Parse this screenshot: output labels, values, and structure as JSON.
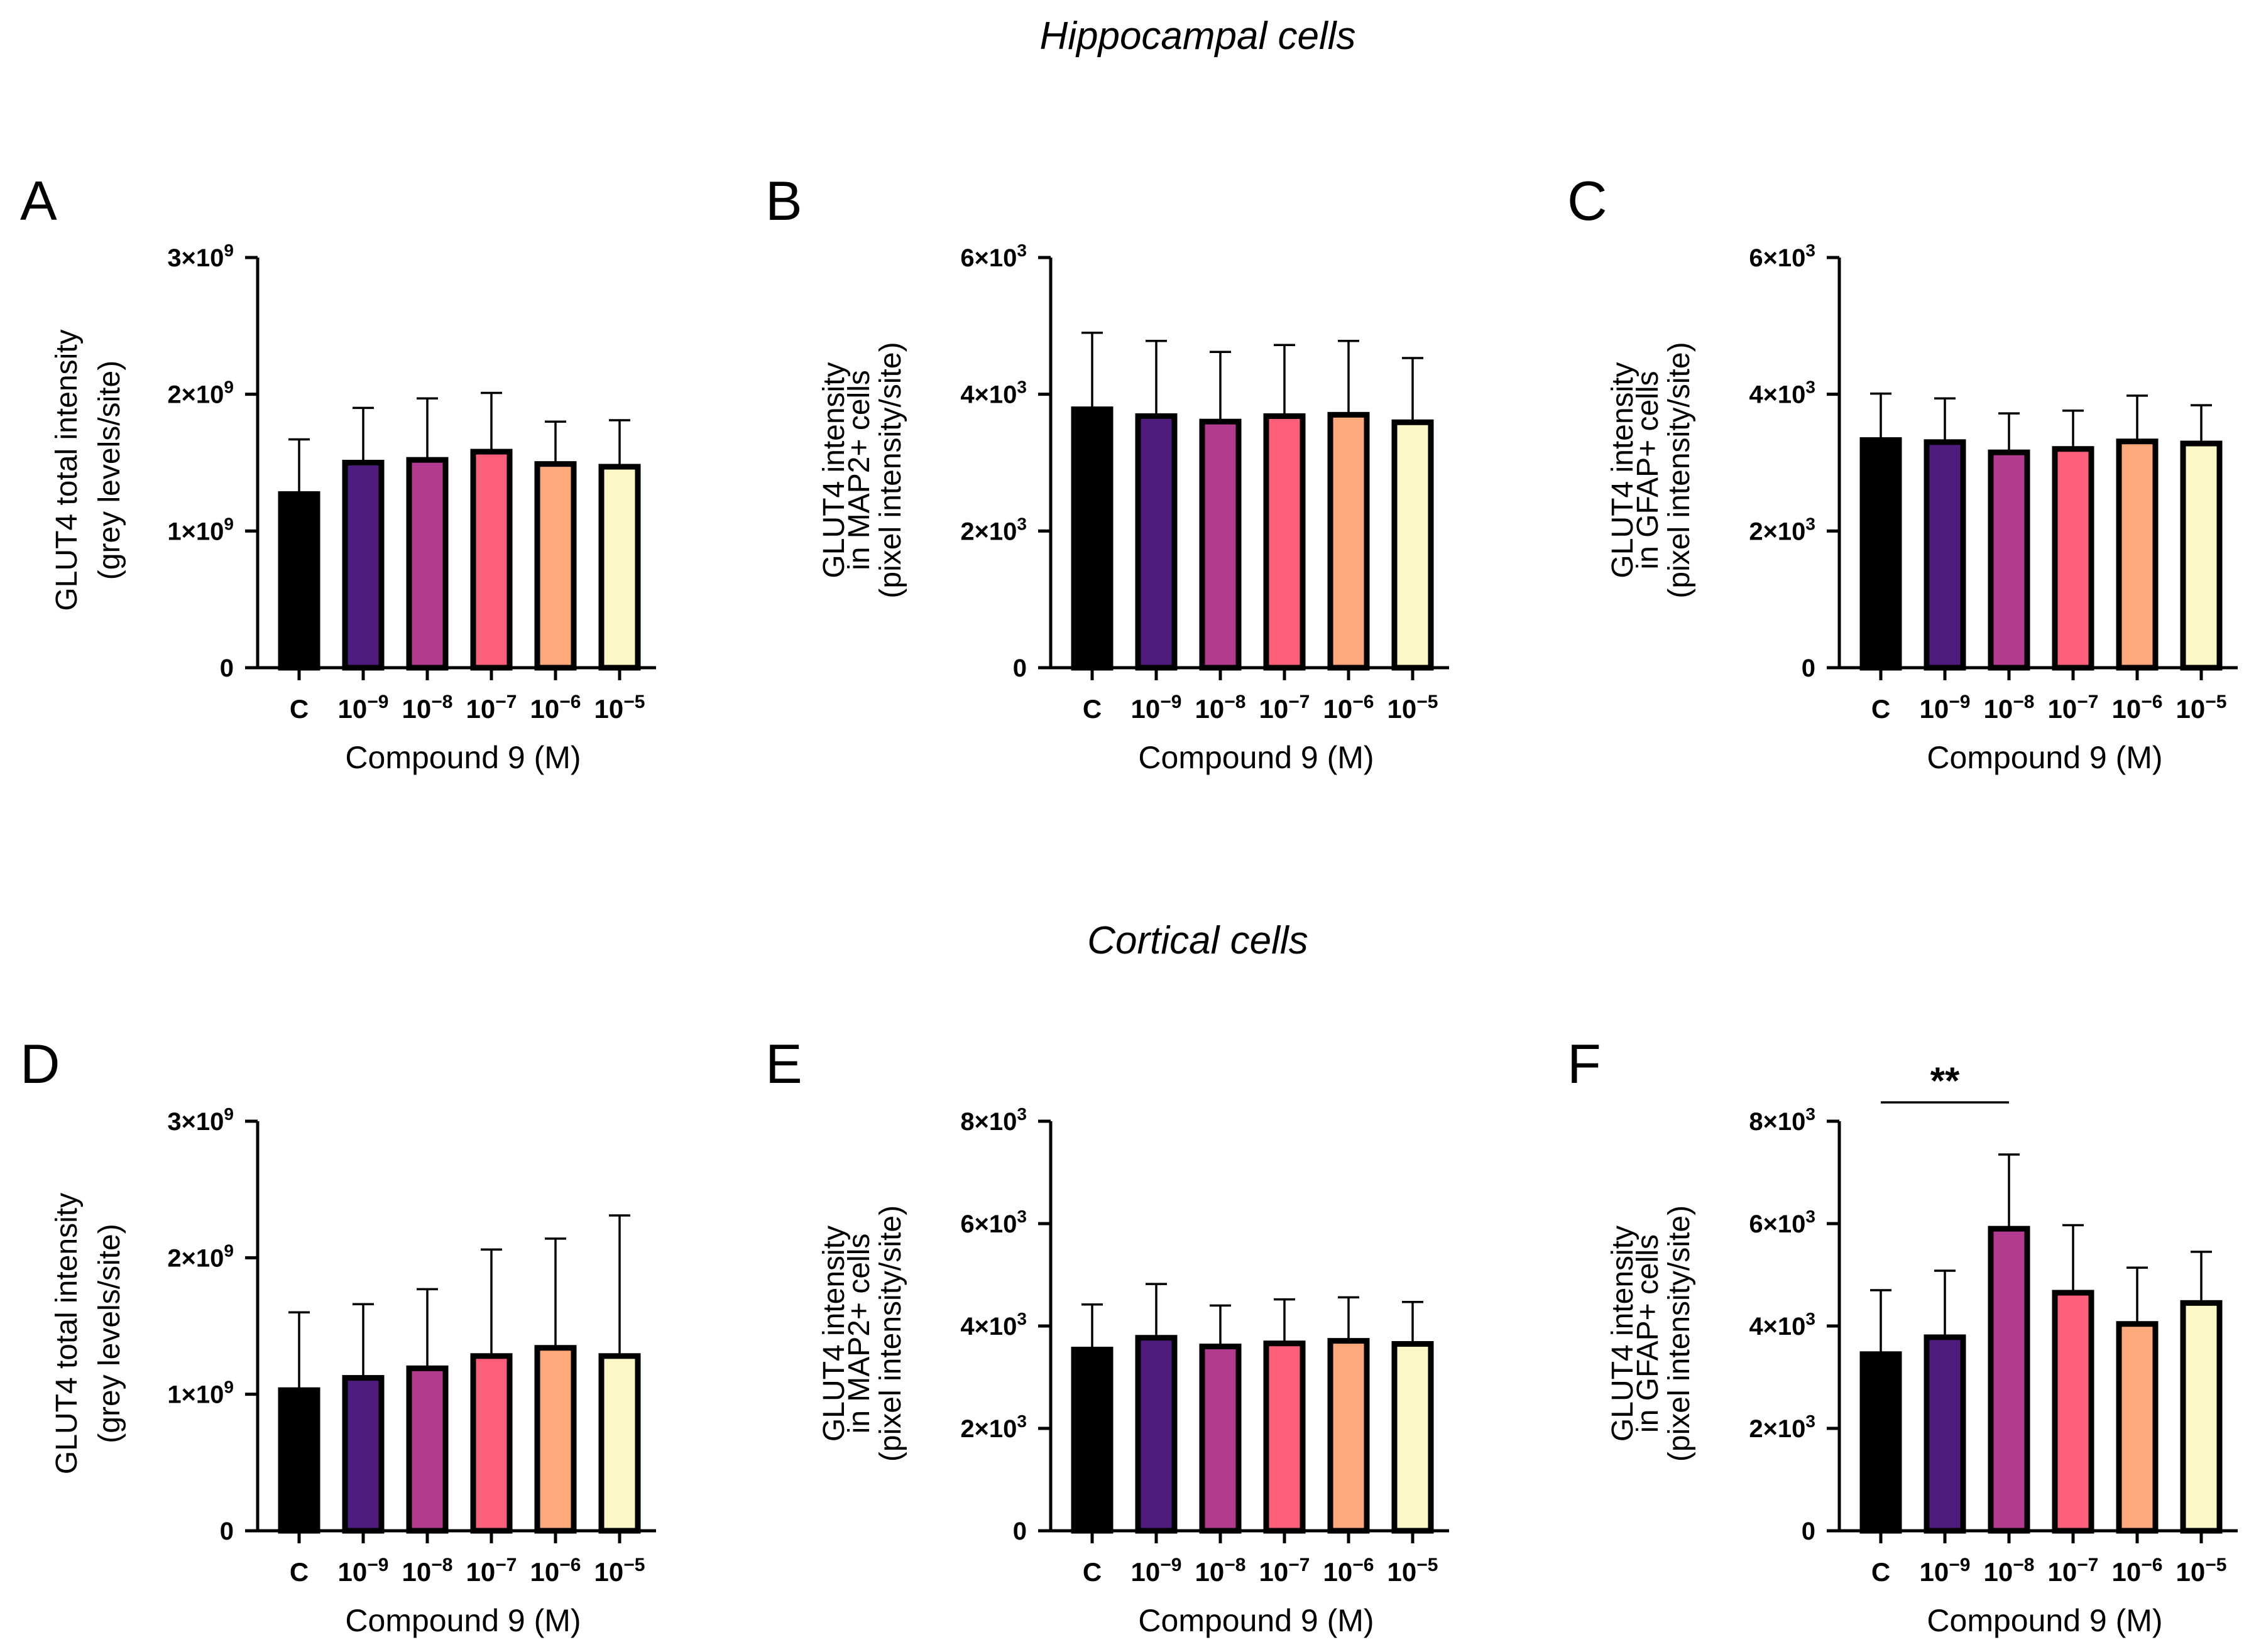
{
  "sections": [
    {
      "title": "Hippocampal cells"
    },
    {
      "title": "Cortical cells"
    }
  ],
  "bar_colors": [
    "#000000",
    "#4f1c7d",
    "#b23a8f",
    "#fc5f79",
    "#fea97b",
    "#fbf7c6"
  ],
  "chart_data": [
    {
      "panel": "A",
      "section": "Hippocampal cells",
      "type": "bar",
      "categories": [
        "C",
        "10^-9",
        "10^-8",
        "10^-7",
        "10^-6",
        "10^-5"
      ],
      "category_labels": [
        {
          "base": "C",
          "exp": ""
        },
        {
          "base": "10",
          "exp": "−9"
        },
        {
          "base": "10",
          "exp": "−8"
        },
        {
          "base": "10",
          "exp": "−7"
        },
        {
          "base": "10",
          "exp": "−6"
        },
        {
          "base": "10",
          "exp": "−5"
        }
      ],
      "values": [
        1270000000.0,
        1500000000.0,
        1520000000.0,
        1580000000.0,
        1490000000.0,
        1470000000.0
      ],
      "errors": [
        400000000.0,
        400000000.0,
        450000000.0,
        430000000.0,
        310000000.0,
        340000000.0
      ],
      "ylim": [
        0,
        3000000000.0
      ],
      "yticks": [
        {
          "value": 0,
          "base": "0",
          "exp": ""
        },
        {
          "value": 1000000000.0,
          "base": "1×10",
          "exp": "9"
        },
        {
          "value": 2000000000.0,
          "base": "2×10",
          "exp": "9"
        },
        {
          "value": 3000000000.0,
          "base": "3×10",
          "exp": "9"
        }
      ],
      "xlabel": "Compound 9 (M)",
      "ylabel": [
        "GLUT4 total intensity",
        "(grey levels/site)"
      ],
      "significance": null
    },
    {
      "panel": "B",
      "section": "Hippocampal cells",
      "type": "bar",
      "categories": [
        "C",
        "10^-9",
        "10^-8",
        "10^-7",
        "10^-6",
        "10^-5"
      ],
      "category_labels": [
        {
          "base": "C",
          "exp": ""
        },
        {
          "base": "10",
          "exp": "−9"
        },
        {
          "base": "10",
          "exp": "−8"
        },
        {
          "base": "10",
          "exp": "−7"
        },
        {
          "base": "10",
          "exp": "−6"
        },
        {
          "base": "10",
          "exp": "−5"
        }
      ],
      "values": [
        3780,
        3680,
        3600,
        3680,
        3700,
        3590
      ],
      "errors": [
        1120,
        1100,
        1020,
        1040,
        1080,
        940
      ],
      "ylim": [
        0,
        6000
      ],
      "yticks": [
        {
          "value": 0,
          "base": "0",
          "exp": ""
        },
        {
          "value": 2000,
          "base": "2×10",
          "exp": "3"
        },
        {
          "value": 4000,
          "base": "4×10",
          "exp": "3"
        },
        {
          "value": 6000,
          "base": "6×10",
          "exp": "3"
        }
      ],
      "xlabel": "Compound 9 (M)",
      "ylabel": [
        "GLUT4 intensity",
        "in MAP2+ cells",
        "(pixel intensity/site)"
      ],
      "significance": null
    },
    {
      "panel": "C",
      "section": "Hippocampal cells",
      "type": "bar",
      "categories": [
        "C",
        "10^-9",
        "10^-8",
        "10^-7",
        "10^-6",
        "10^-5"
      ],
      "category_labels": [
        {
          "base": "C",
          "exp": ""
        },
        {
          "base": "10",
          "exp": "−9"
        },
        {
          "base": "10",
          "exp": "−8"
        },
        {
          "base": "10",
          "exp": "−7"
        },
        {
          "base": "10",
          "exp": "−6"
        },
        {
          "base": "10",
          "exp": "−5"
        }
      ],
      "values": [
        3330,
        3300,
        3150,
        3200,
        3310,
        3280
      ],
      "errors": [
        680,
        640,
        570,
        560,
        670,
        560
      ],
      "ylim": [
        0,
        6000
      ],
      "yticks": [
        {
          "value": 0,
          "base": "0",
          "exp": ""
        },
        {
          "value": 2000,
          "base": "2×10",
          "exp": "3"
        },
        {
          "value": 4000,
          "base": "4×10",
          "exp": "3"
        },
        {
          "value": 6000,
          "base": "6×10",
          "exp": "3"
        }
      ],
      "xlabel": "Compound 9 (M)",
      "ylabel": [
        "GLUT4 intensity",
        "in GFAP+ cells",
        "(pixel intensity/site)"
      ],
      "significance": null
    },
    {
      "panel": "D",
      "section": "Cortical cells",
      "type": "bar",
      "categories": [
        "C",
        "10^-9",
        "10^-8",
        "10^-7",
        "10^-6",
        "10^-5"
      ],
      "category_labels": [
        {
          "base": "C",
          "exp": ""
        },
        {
          "base": "10",
          "exp": "−9"
        },
        {
          "base": "10",
          "exp": "−8"
        },
        {
          "base": "10",
          "exp": "−7"
        },
        {
          "base": "10",
          "exp": "−6"
        },
        {
          "base": "10",
          "exp": "−5"
        }
      ],
      "values": [
        1030000000.0,
        1120000000.0,
        1190000000.0,
        1280000000.0,
        1340000000.0,
        1280000000.0
      ],
      "errors": [
        570000000.0,
        540000000.0,
        580000000.0,
        780000000.0,
        800000000.0,
        1030000000.0
      ],
      "ylim": [
        0,
        3000000000.0
      ],
      "yticks": [
        {
          "value": 0,
          "base": "0",
          "exp": ""
        },
        {
          "value": 1000000000.0,
          "base": "1×10",
          "exp": "9"
        },
        {
          "value": 2000000000.0,
          "base": "2×10",
          "exp": "9"
        },
        {
          "value": 3000000000.0,
          "base": "3×10",
          "exp": "9"
        }
      ],
      "xlabel": "Compound 9 (M)",
      "ylabel": [
        "GLUT4 total intensity",
        "(grey levels/site)"
      ],
      "significance": null
    },
    {
      "panel": "E",
      "section": "Cortical cells",
      "type": "bar",
      "categories": [
        "C",
        "10^-9",
        "10^-8",
        "10^-7",
        "10^-6",
        "10^-5"
      ],
      "category_labels": [
        {
          "base": "C",
          "exp": ""
        },
        {
          "base": "10",
          "exp": "−9"
        },
        {
          "base": "10",
          "exp": "−8"
        },
        {
          "base": "10",
          "exp": "−7"
        },
        {
          "base": "10",
          "exp": "−6"
        },
        {
          "base": "10",
          "exp": "−5"
        }
      ],
      "values": [
        3540,
        3770,
        3600,
        3660,
        3710,
        3650
      ],
      "errors": [
        880,
        1050,
        800,
        860,
        850,
        820
      ],
      "ylim": [
        0,
        8000
      ],
      "yticks": [
        {
          "value": 0,
          "base": "0",
          "exp": ""
        },
        {
          "value": 2000,
          "base": "2×10",
          "exp": "3"
        },
        {
          "value": 4000,
          "base": "4×10",
          "exp": "3"
        },
        {
          "value": 6000,
          "base": "6×10",
          "exp": "3"
        },
        {
          "value": 8000,
          "base": "8×10",
          "exp": "3"
        }
      ],
      "xlabel": "Compound 9 (M)",
      "ylabel": [
        "GLUT4 intensity",
        "in MAP2+ cells",
        "(pixel intensity/site)"
      ],
      "significance": null
    },
    {
      "panel": "F",
      "section": "Cortical cells",
      "type": "bar",
      "categories": [
        "C",
        "10^-9",
        "10^-8",
        "10^-7",
        "10^-6",
        "10^-5"
      ],
      "category_labels": [
        {
          "base": "C",
          "exp": ""
        },
        {
          "base": "10",
          "exp": "−9"
        },
        {
          "base": "10",
          "exp": "−8"
        },
        {
          "base": "10",
          "exp": "−7"
        },
        {
          "base": "10",
          "exp": "−6"
        },
        {
          "base": "10",
          "exp": "−5"
        }
      ],
      "values": [
        3450,
        3780,
        5900,
        4650,
        4040,
        4450
      ],
      "errors": [
        1250,
        1300,
        1450,
        1320,
        1100,
        1000
      ],
      "ylim": [
        0,
        8000
      ],
      "yticks": [
        {
          "value": 0,
          "base": "0",
          "exp": ""
        },
        {
          "value": 2000,
          "base": "2×10",
          "exp": "3"
        },
        {
          "value": 4000,
          "base": "4×10",
          "exp": "3"
        },
        {
          "value": 6000,
          "base": "6×10",
          "exp": "3"
        },
        {
          "value": 8000,
          "base": "8×10",
          "exp": "3"
        }
      ],
      "xlabel": "Compound 9 (M)",
      "ylabel": [
        "GLUT4 intensity",
        "in GFAP+ cells",
        "(pixel intensity/site)"
      ],
      "significance": {
        "from": 0,
        "to": 2,
        "label": "**"
      }
    }
  ]
}
